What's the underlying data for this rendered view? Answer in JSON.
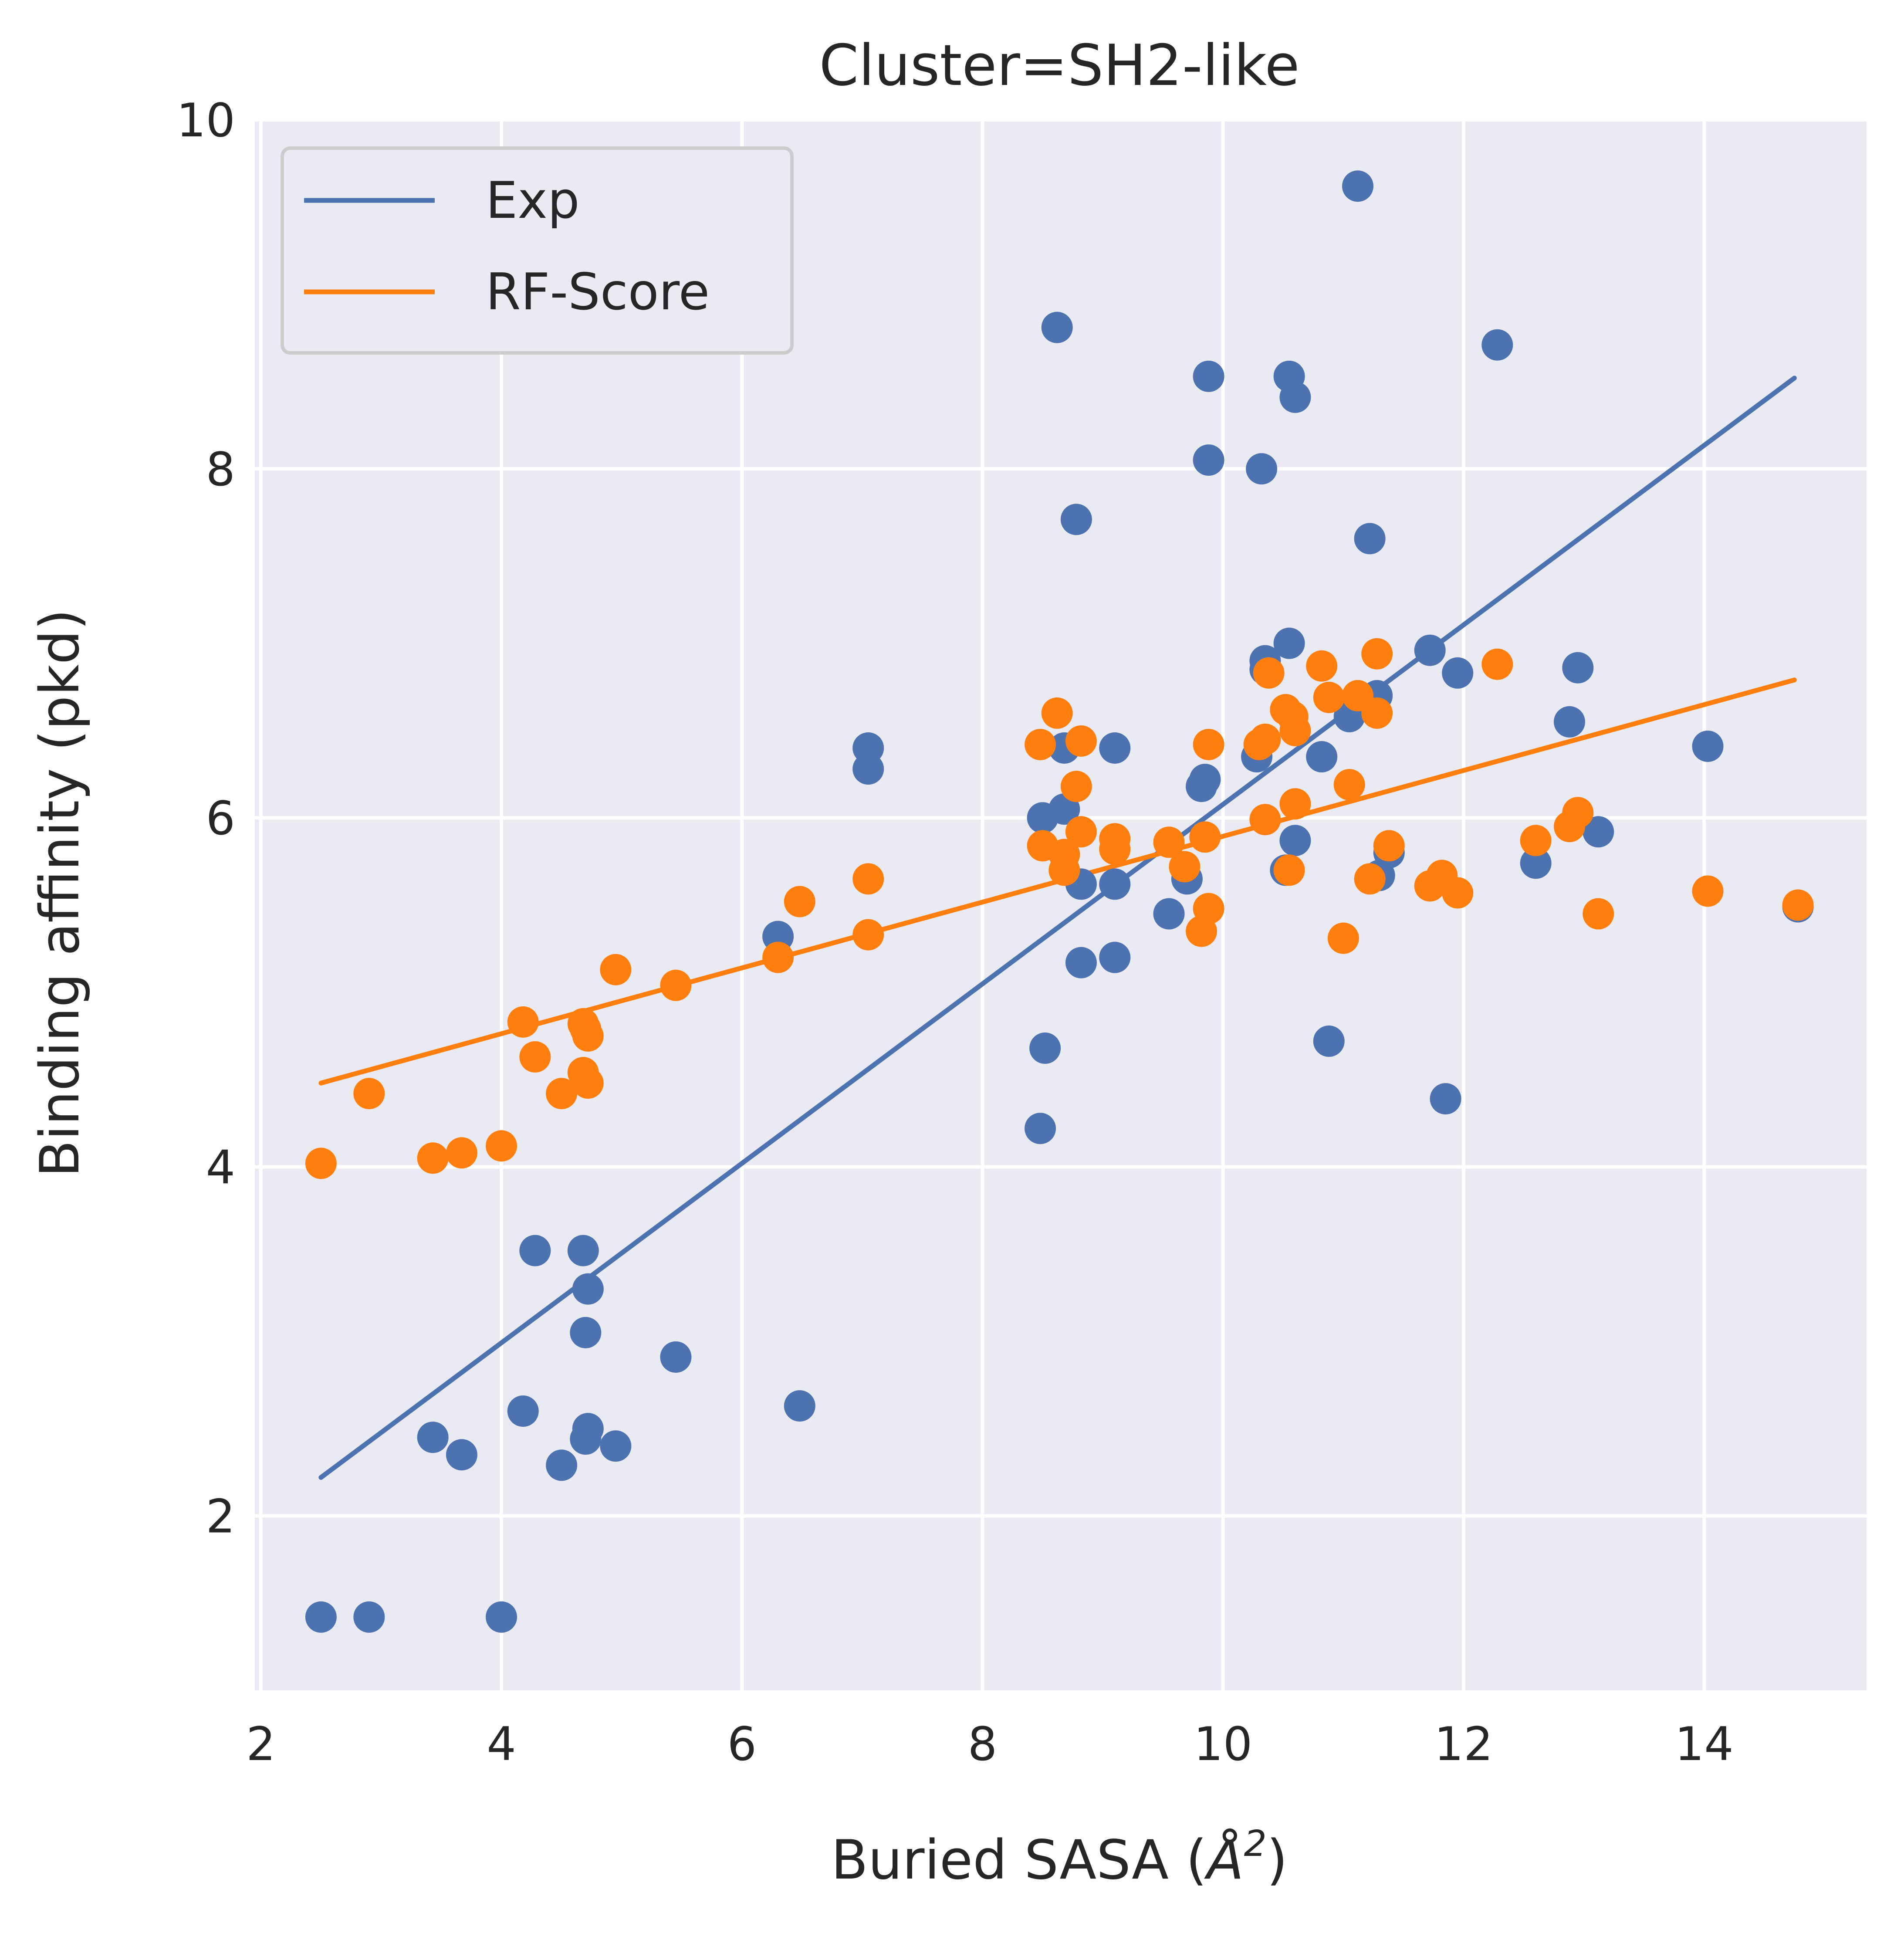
{
  "chart_data": {
    "type": "scatter",
    "title": "Cluster=SH2-like",
    "xlabel_main": "Buried SASA (",
    "xlabel_symbol": "Å",
    "xlabel_sup": "2",
    "xlabel_end": ")",
    "ylabel": "Binding affinity (pkd)",
    "xlim": [
      1.95,
      15.35
    ],
    "ylim": [
      1.0,
      10.0
    ],
    "xticks": [
      2,
      4,
      6,
      8,
      10,
      12,
      14
    ],
    "yticks": [
      2,
      4,
      6,
      8,
      10
    ],
    "grid": true,
    "legend_position": "top-left",
    "series": [
      {
        "name": "Exp",
        "color": "#4c72b0",
        "fit_line": [
          [
            2.5,
            2.22
          ],
          [
            14.75,
            8.52
          ]
        ],
        "points": [
          [
            2.5,
            1.42
          ],
          [
            2.9,
            1.42
          ],
          [
            4.0,
            1.42
          ],
          [
            3.43,
            2.45
          ],
          [
            3.67,
            2.35
          ],
          [
            4.18,
            2.6
          ],
          [
            4.28,
            3.52
          ],
          [
            4.5,
            2.29
          ],
          [
            4.68,
            3.52
          ],
          [
            4.7,
            2.44
          ],
          [
            4.72,
            2.5
          ],
          [
            4.72,
            3.3
          ],
          [
            4.7,
            3.05
          ],
          [
            4.95,
            2.4
          ],
          [
            5.45,
            2.91
          ],
          [
            6.3,
            5.32
          ],
          [
            6.48,
            2.63
          ],
          [
            7.05,
            6.4
          ],
          [
            7.05,
            6.28
          ],
          [
            8.48,
            4.22
          ],
          [
            8.5,
            6.0
          ],
          [
            8.52,
            4.68
          ],
          [
            8.62,
            8.81
          ],
          [
            8.68,
            6.4
          ],
          [
            8.68,
            6.05
          ],
          [
            8.78,
            7.71
          ],
          [
            8.82,
            5.17
          ],
          [
            8.82,
            5.62
          ],
          [
            9.1,
            6.4
          ],
          [
            9.1,
            5.2
          ],
          [
            9.1,
            5.62
          ],
          [
            9.55,
            5.45
          ],
          [
            9.7,
            5.65
          ],
          [
            9.82,
            6.18
          ],
          [
            9.85,
            6.22
          ],
          [
            9.88,
            8.53
          ],
          [
            9.88,
            8.05
          ],
          [
            10.32,
            8.0
          ],
          [
            10.28,
            6.35
          ],
          [
            10.35,
            6.9
          ],
          [
            10.35,
            6.85
          ],
          [
            10.52,
            5.7
          ],
          [
            10.55,
            8.53
          ],
          [
            10.55,
            7.0
          ],
          [
            10.6,
            8.41
          ],
          [
            10.6,
            5.87
          ],
          [
            10.82,
            6.35
          ],
          [
            10.88,
            4.72
          ],
          [
            11.05,
            6.58
          ],
          [
            11.12,
            9.62
          ],
          [
            11.22,
            7.6
          ],
          [
            11.28,
            6.7
          ],
          [
            11.3,
            5.67
          ],
          [
            11.38,
            5.8
          ],
          [
            11.72,
            6.96
          ],
          [
            11.85,
            4.39
          ],
          [
            11.95,
            6.83
          ],
          [
            12.28,
            8.71
          ],
          [
            12.6,
            5.74
          ],
          [
            12.88,
            6.55
          ],
          [
            12.95,
            6.86
          ],
          [
            13.12,
            5.92
          ],
          [
            14.03,
            6.41
          ],
          [
            14.78,
            5.49
          ]
        ]
      },
      {
        "name": "RF-Score",
        "color": "#ff7f0e",
        "fit_line": [
          [
            2.5,
            4.48
          ],
          [
            14.75,
            6.79
          ]
        ],
        "points": [
          [
            2.5,
            4.02
          ],
          [
            2.9,
            4.42
          ],
          [
            3.43,
            4.05
          ],
          [
            3.67,
            4.08
          ],
          [
            4.0,
            4.12
          ],
          [
            4.18,
            4.83
          ],
          [
            4.28,
            4.63
          ],
          [
            4.5,
            4.42
          ],
          [
            4.68,
            4.82
          ],
          [
            4.7,
            4.79
          ],
          [
            4.68,
            4.54
          ],
          [
            4.72,
            4.75
          ],
          [
            4.72,
            4.48
          ],
          [
            4.95,
            5.13
          ],
          [
            5.45,
            5.04
          ],
          [
            6.3,
            5.2
          ],
          [
            6.48,
            5.52
          ],
          [
            7.05,
            5.65
          ],
          [
            7.05,
            5.33
          ],
          [
            8.48,
            6.42
          ],
          [
            8.5,
            5.84
          ],
          [
            8.62,
            6.6
          ],
          [
            8.68,
            5.79
          ],
          [
            8.68,
            5.7
          ],
          [
            8.78,
            6.18
          ],
          [
            8.82,
            5.92
          ],
          [
            8.82,
            6.44
          ],
          [
            9.1,
            5.88
          ],
          [
            9.1,
            5.82
          ],
          [
            9.55,
            5.86
          ],
          [
            9.68,
            5.72
          ],
          [
            9.82,
            5.35
          ],
          [
            9.85,
            5.89
          ],
          [
            9.88,
            6.42
          ],
          [
            9.88,
            5.48
          ],
          [
            10.3,
            6.42
          ],
          [
            10.35,
            6.45
          ],
          [
            10.35,
            5.99
          ],
          [
            10.38,
            6.83
          ],
          [
            10.52,
            6.62
          ],
          [
            10.55,
            5.7
          ],
          [
            10.58,
            6.58
          ],
          [
            10.6,
            6.08
          ],
          [
            10.6,
            6.5
          ],
          [
            10.82,
            6.87
          ],
          [
            10.88,
            6.69
          ],
          [
            11.0,
            5.31
          ],
          [
            11.05,
            6.19
          ],
          [
            11.12,
            6.7
          ],
          [
            11.22,
            5.65
          ],
          [
            11.28,
            6.6
          ],
          [
            11.28,
            6.94
          ],
          [
            11.38,
            5.84
          ],
          [
            11.72,
            5.61
          ],
          [
            11.82,
            5.67
          ],
          [
            11.95,
            5.57
          ],
          [
            12.28,
            6.88
          ],
          [
            12.6,
            5.87
          ],
          [
            12.88,
            5.95
          ],
          [
            12.95,
            6.03
          ],
          [
            13.12,
            5.45
          ],
          [
            14.03,
            5.58
          ],
          [
            14.78,
            5.5
          ]
        ]
      }
    ]
  }
}
